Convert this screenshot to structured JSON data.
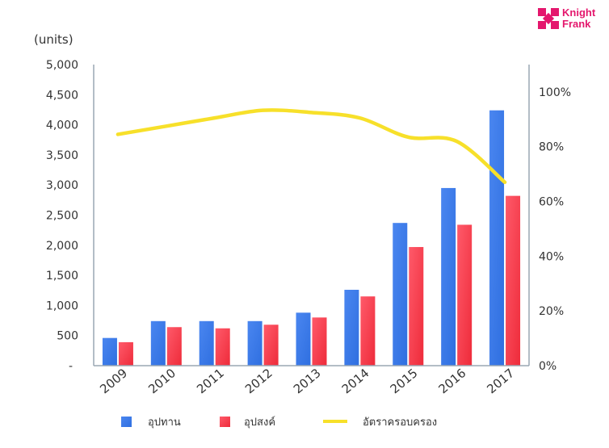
{
  "brand": {
    "line1": "Knight",
    "line2": "Frank",
    "color": "#e4176d",
    "logo_icon": "knight-frank-logo-icon"
  },
  "chart_data": {
    "type": "bar",
    "unit_label": "(units)",
    "categories": [
      "2009",
      "2010",
      "2011",
      "2012",
      "2013",
      "2014",
      "2015",
      "2016",
      "2017"
    ],
    "series": [
      {
        "name": "อุปทาน",
        "type": "bar",
        "axis": "left",
        "color": "#4a86f0",
        "values": [
          460,
          740,
          740,
          740,
          880,
          1260,
          2370,
          2950,
          4240
        ]
      },
      {
        "name": "อุปสงค์",
        "type": "bar",
        "axis": "left",
        "color": "#ee2b3a",
        "values": [
          390,
          640,
          620,
          680,
          800,
          1150,
          1970,
          2340,
          2820
        ]
      },
      {
        "name": "อัตราครอบครอง",
        "type": "line",
        "axis": "right",
        "color": "#f7e02a",
        "values": [
          84.5,
          87.5,
          90.5,
          93.3,
          92.5,
          90.5,
          83.5,
          82,
          67
        ]
      }
    ],
    "y_left": {
      "ylim": [
        0,
        5000
      ],
      "ticks": [
        0,
        500,
        1000,
        1500,
        2000,
        2500,
        3000,
        3500,
        4000,
        4500,
        5000
      ],
      "tick_labels": [
        "-",
        "500",
        "1,000",
        "1,500",
        "2,000",
        "2,500",
        "3,000",
        "3,500",
        "4,000",
        "4,500",
        "5,000"
      ]
    },
    "y_right": {
      "ylim": [
        0,
        110
      ],
      "ticks": [
        0,
        20,
        40,
        60,
        80,
        100
      ],
      "tick_labels": [
        "0%",
        "20%",
        "40%",
        "60%",
        "80%",
        "100%"
      ]
    },
    "grid": false,
    "legend_position": "bottom"
  }
}
